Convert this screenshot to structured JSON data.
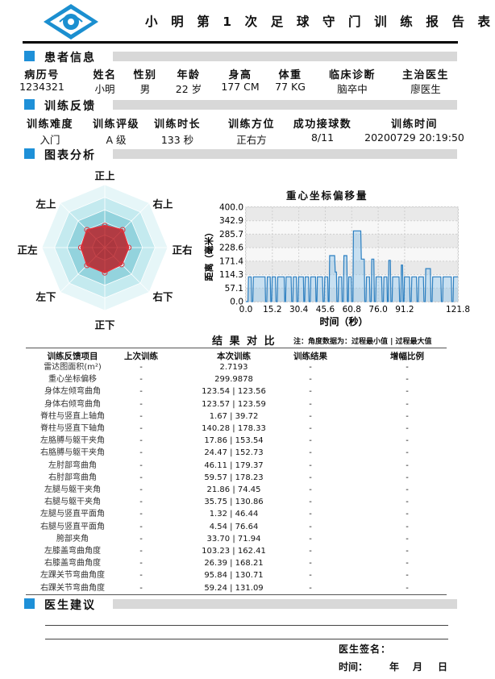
{
  "document": {
    "title": "小 明 第 1 次 足 球 守 门 训 练 报 告 表"
  },
  "patient_section": {
    "title": "患者信息",
    "headers": [
      "病历号",
      "姓名",
      "性别",
      "年龄",
      "身高",
      "体重",
      "临床诊断",
      "主治医生"
    ],
    "values": [
      "1234321",
      "小明",
      "男",
      "22 岁",
      "177 CM",
      "77 KG",
      "脑卒中",
      "廖医生"
    ]
  },
  "feedback_section": {
    "title": "训练反馈",
    "headers": [
      "训练难度",
      "训练评级",
      "训练时长",
      "训练方位",
      "成功接球数",
      "训练时间"
    ],
    "values": [
      "入门",
      "A 级",
      "133 秒",
      "正右方",
      "8/11",
      "20200729 20:19:50"
    ]
  },
  "chart_section": {
    "title": "图表分析"
  },
  "chart_data": [
    {
      "type": "radar",
      "axes": [
        "正上",
        "右上",
        "正右",
        "右下",
        "正下",
        "左下",
        "正左",
        "左上"
      ],
      "rings": 5,
      "values": [
        0.35,
        0.4,
        0.38,
        0.38,
        0.4,
        0.4,
        0.38,
        0.4
      ],
      "colors": {
        "fill": "#c0262c",
        "line": "#e0303a",
        "rings": [
          "#e6f6f8",
          "#c4eaef",
          "#93d3dd",
          "#5fb5c6",
          "#3597ad"
        ]
      }
    },
    {
      "type": "area",
      "title": "重心坐标偏移量",
      "xlabel": "时间（秒）",
      "ylabel": "距离（毫米）",
      "xlim": [
        0,
        121.8
      ],
      "ylim": [
        0,
        400
      ],
      "xticks": [
        "0.0",
        "15.2",
        "30.4",
        "45.6",
        "60.8",
        "76.0",
        "91.2",
        "121.8"
      ],
      "yticks": [
        "0.0",
        "57.1",
        "114.3",
        "171.4",
        "228.6",
        "285.7",
        "342.9",
        "400.0"
      ],
      "grid": true,
      "color": "#2b7fc1",
      "points": [
        [
          0,
          0
        ],
        [
          1.2,
          0
        ],
        [
          1.5,
          105
        ],
        [
          3,
          105
        ],
        [
          3.3,
          0
        ],
        [
          4,
          0
        ],
        [
          4.3,
          105
        ],
        [
          11,
          105
        ],
        [
          11.3,
          0
        ],
        [
          12,
          0
        ],
        [
          12.3,
          105
        ],
        [
          14,
          105
        ],
        [
          14.3,
          0
        ],
        [
          14.8,
          0
        ],
        [
          15.1,
          105
        ],
        [
          17,
          105
        ],
        [
          17.3,
          0
        ],
        [
          18,
          0
        ],
        [
          18.3,
          105
        ],
        [
          22,
          105
        ],
        [
          22.3,
          0
        ],
        [
          22.8,
          0
        ],
        [
          23.1,
          105
        ],
        [
          26,
          105
        ],
        [
          26.3,
          0
        ],
        [
          27,
          0
        ],
        [
          27.3,
          105
        ],
        [
          29,
          105
        ],
        [
          29.3,
          0
        ],
        [
          30,
          0
        ],
        [
          30.3,
          105
        ],
        [
          33,
          105
        ],
        [
          33.3,
          0
        ],
        [
          33.8,
          0
        ],
        [
          34.1,
          105
        ],
        [
          36,
          105
        ],
        [
          36.3,
          0
        ],
        [
          37,
          0
        ],
        [
          37.3,
          105
        ],
        [
          40,
          105
        ],
        [
          40.3,
          0
        ],
        [
          40.8,
          0
        ],
        [
          41.1,
          105
        ],
        [
          44,
          105
        ],
        [
          44.3,
          0
        ],
        [
          45,
          0
        ],
        [
          45.3,
          105
        ],
        [
          47,
          105
        ],
        [
          47.3,
          0
        ],
        [
          47.8,
          0
        ],
        [
          48.1,
          195
        ],
        [
          51,
          195
        ],
        [
          51.3,
          125
        ],
        [
          52,
          125
        ],
        [
          52.3,
          0
        ],
        [
          53,
          0
        ],
        [
          53.3,
          105
        ],
        [
          55,
          105
        ],
        [
          55.3,
          0
        ],
        [
          56,
          0
        ],
        [
          56.3,
          195
        ],
        [
          58,
          195
        ],
        [
          58.3,
          0
        ],
        [
          58.8,
          0
        ],
        [
          59.1,
          105
        ],
        [
          60.5,
          105
        ],
        [
          60.8,
          0
        ],
        [
          61.5,
          0
        ],
        [
          61.8,
          300
        ],
        [
          66,
          300
        ],
        [
          66.3,
          180
        ],
        [
          68,
          180
        ],
        [
          68.3,
          0
        ],
        [
          69,
          0
        ],
        [
          69.3,
          105
        ],
        [
          71,
          105
        ],
        [
          71.3,
          0
        ],
        [
          72,
          0
        ],
        [
          72.3,
          180
        ],
        [
          73.5,
          180
        ],
        [
          73.8,
          0
        ],
        [
          74.5,
          0
        ],
        [
          74.8,
          105
        ],
        [
          78,
          105
        ],
        [
          78.3,
          0
        ],
        [
          79,
          0
        ],
        [
          79.3,
          105
        ],
        [
          81,
          105
        ],
        [
          81.3,
          0
        ],
        [
          81.8,
          0
        ],
        [
          82.1,
          175
        ],
        [
          83,
          175
        ],
        [
          83.3,
          0
        ],
        [
          84,
          0
        ],
        [
          84.3,
          105
        ],
        [
          88,
          105
        ],
        [
          88.3,
          0
        ],
        [
          89,
          0
        ],
        [
          89.3,
          155
        ],
        [
          90,
          155
        ],
        [
          90.3,
          0
        ],
        [
          90.8,
          0
        ],
        [
          91.1,
          105
        ],
        [
          94,
          105
        ],
        [
          94.3,
          0
        ],
        [
          95,
          0
        ],
        [
          95.3,
          105
        ],
        [
          98,
          105
        ],
        [
          98.3,
          0
        ],
        [
          99,
          0
        ],
        [
          99.3,
          105
        ],
        [
          102,
          105
        ],
        [
          102.3,
          0
        ],
        [
          103,
          0
        ],
        [
          103.3,
          140
        ],
        [
          106,
          140
        ],
        [
          106.3,
          0
        ],
        [
          107,
          0
        ],
        [
          107.3,
          105
        ],
        [
          112,
          105
        ],
        [
          112.3,
          0
        ],
        [
          113,
          0
        ],
        [
          113.3,
          105
        ],
        [
          118,
          105
        ],
        [
          118.3,
          0
        ],
        [
          119,
          0
        ],
        [
          119.3,
          105
        ],
        [
          121.8,
          105
        ]
      ]
    }
  ],
  "results": {
    "title": "结 果 对 比",
    "note": "注：角度数据为：过程最小值 | 过程最大值",
    "columns": [
      "训练反馈项目",
      "上次训练",
      "本次训练",
      "训练结果",
      "增幅比例"
    ],
    "rows": [
      [
        "雷达图面积(m²)",
        "-",
        "2.7193",
        "-",
        "-"
      ],
      [
        "重心坐标偏移",
        "-",
        "299.9878",
        "-",
        "-"
      ],
      [
        "身体左倾弯曲角",
        "-",
        "123.54 | 123.56",
        "-",
        "-"
      ],
      [
        "身体右倾弯曲角",
        "-",
        "123.57 | 123.59",
        "-",
        "-"
      ],
      [
        "脊柱与竖直上轴角",
        "-",
        "1.67 | 39.72",
        "-",
        "-"
      ],
      [
        "脊柱与竖直下轴角",
        "-",
        "140.28 | 178.33",
        "-",
        "-"
      ],
      [
        "左胳膊与躯干夹角",
        "-",
        "17.86 | 153.54",
        "-",
        "-"
      ],
      [
        "右胳膊与躯干夹角",
        "-",
        "24.47 | 152.73",
        "-",
        "-"
      ],
      [
        "左肘部弯曲角",
        "-",
        "46.11 | 179.37",
        "-",
        "-"
      ],
      [
        "右肘部弯曲角",
        "-",
        "59.57 | 178.23",
        "-",
        "-"
      ],
      [
        "左腿与躯干夹角",
        "-",
        "21.86 | 74.45",
        "-",
        "-"
      ],
      [
        "右腿与躯干夹角",
        "-",
        "35.75 | 130.86",
        "-",
        "-"
      ],
      [
        "左腿与竖直平面角",
        "-",
        "1.32 | 46.44",
        "-",
        "-"
      ],
      [
        "右腿与竖直平面角",
        "-",
        "4.54 | 76.64",
        "-",
        "-"
      ],
      [
        "胯部夹角",
        "-",
        "33.70 | 71.94",
        "-",
        "-"
      ],
      [
        "左膝盖弯曲角度",
        "-",
        "103.23 | 162.41",
        "-",
        "-"
      ],
      [
        "右膝盖弯曲角度",
        "-",
        "26.39 | 168.21",
        "-",
        "-"
      ],
      [
        "左踝关节弯曲角度",
        "-",
        "95.84 | 130.71",
        "-",
        "-"
      ],
      [
        "右踝关节弯曲角度",
        "-",
        "59.24 | 131.09",
        "-",
        "-"
      ]
    ]
  },
  "advice_section": {
    "title": "医生建议",
    "signature_label": "医生签名：",
    "date_label": "时间：",
    "year": "年",
    "month": "月",
    "day": "日"
  },
  "colors": {
    "accent": "#1e90d8",
    "section_bar": "#d8d8d8",
    "logo": "#1b8fd0"
  }
}
